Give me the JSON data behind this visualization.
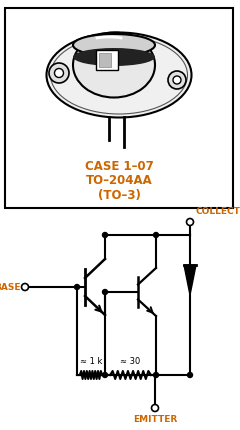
{
  "case_line1": "CASE 1–07",
  "case_line2": "TO–204AA",
  "case_line3": "(TO–3)",
  "label_collector": "COLLECTOR",
  "label_base": "BASE",
  "label_emitter": "EMITTER",
  "label_r1": "≈ 1 k",
  "label_r2": "≈ 30",
  "text_color": "#cc6600",
  "line_color": "#000000",
  "bg_color": "#ffffff"
}
